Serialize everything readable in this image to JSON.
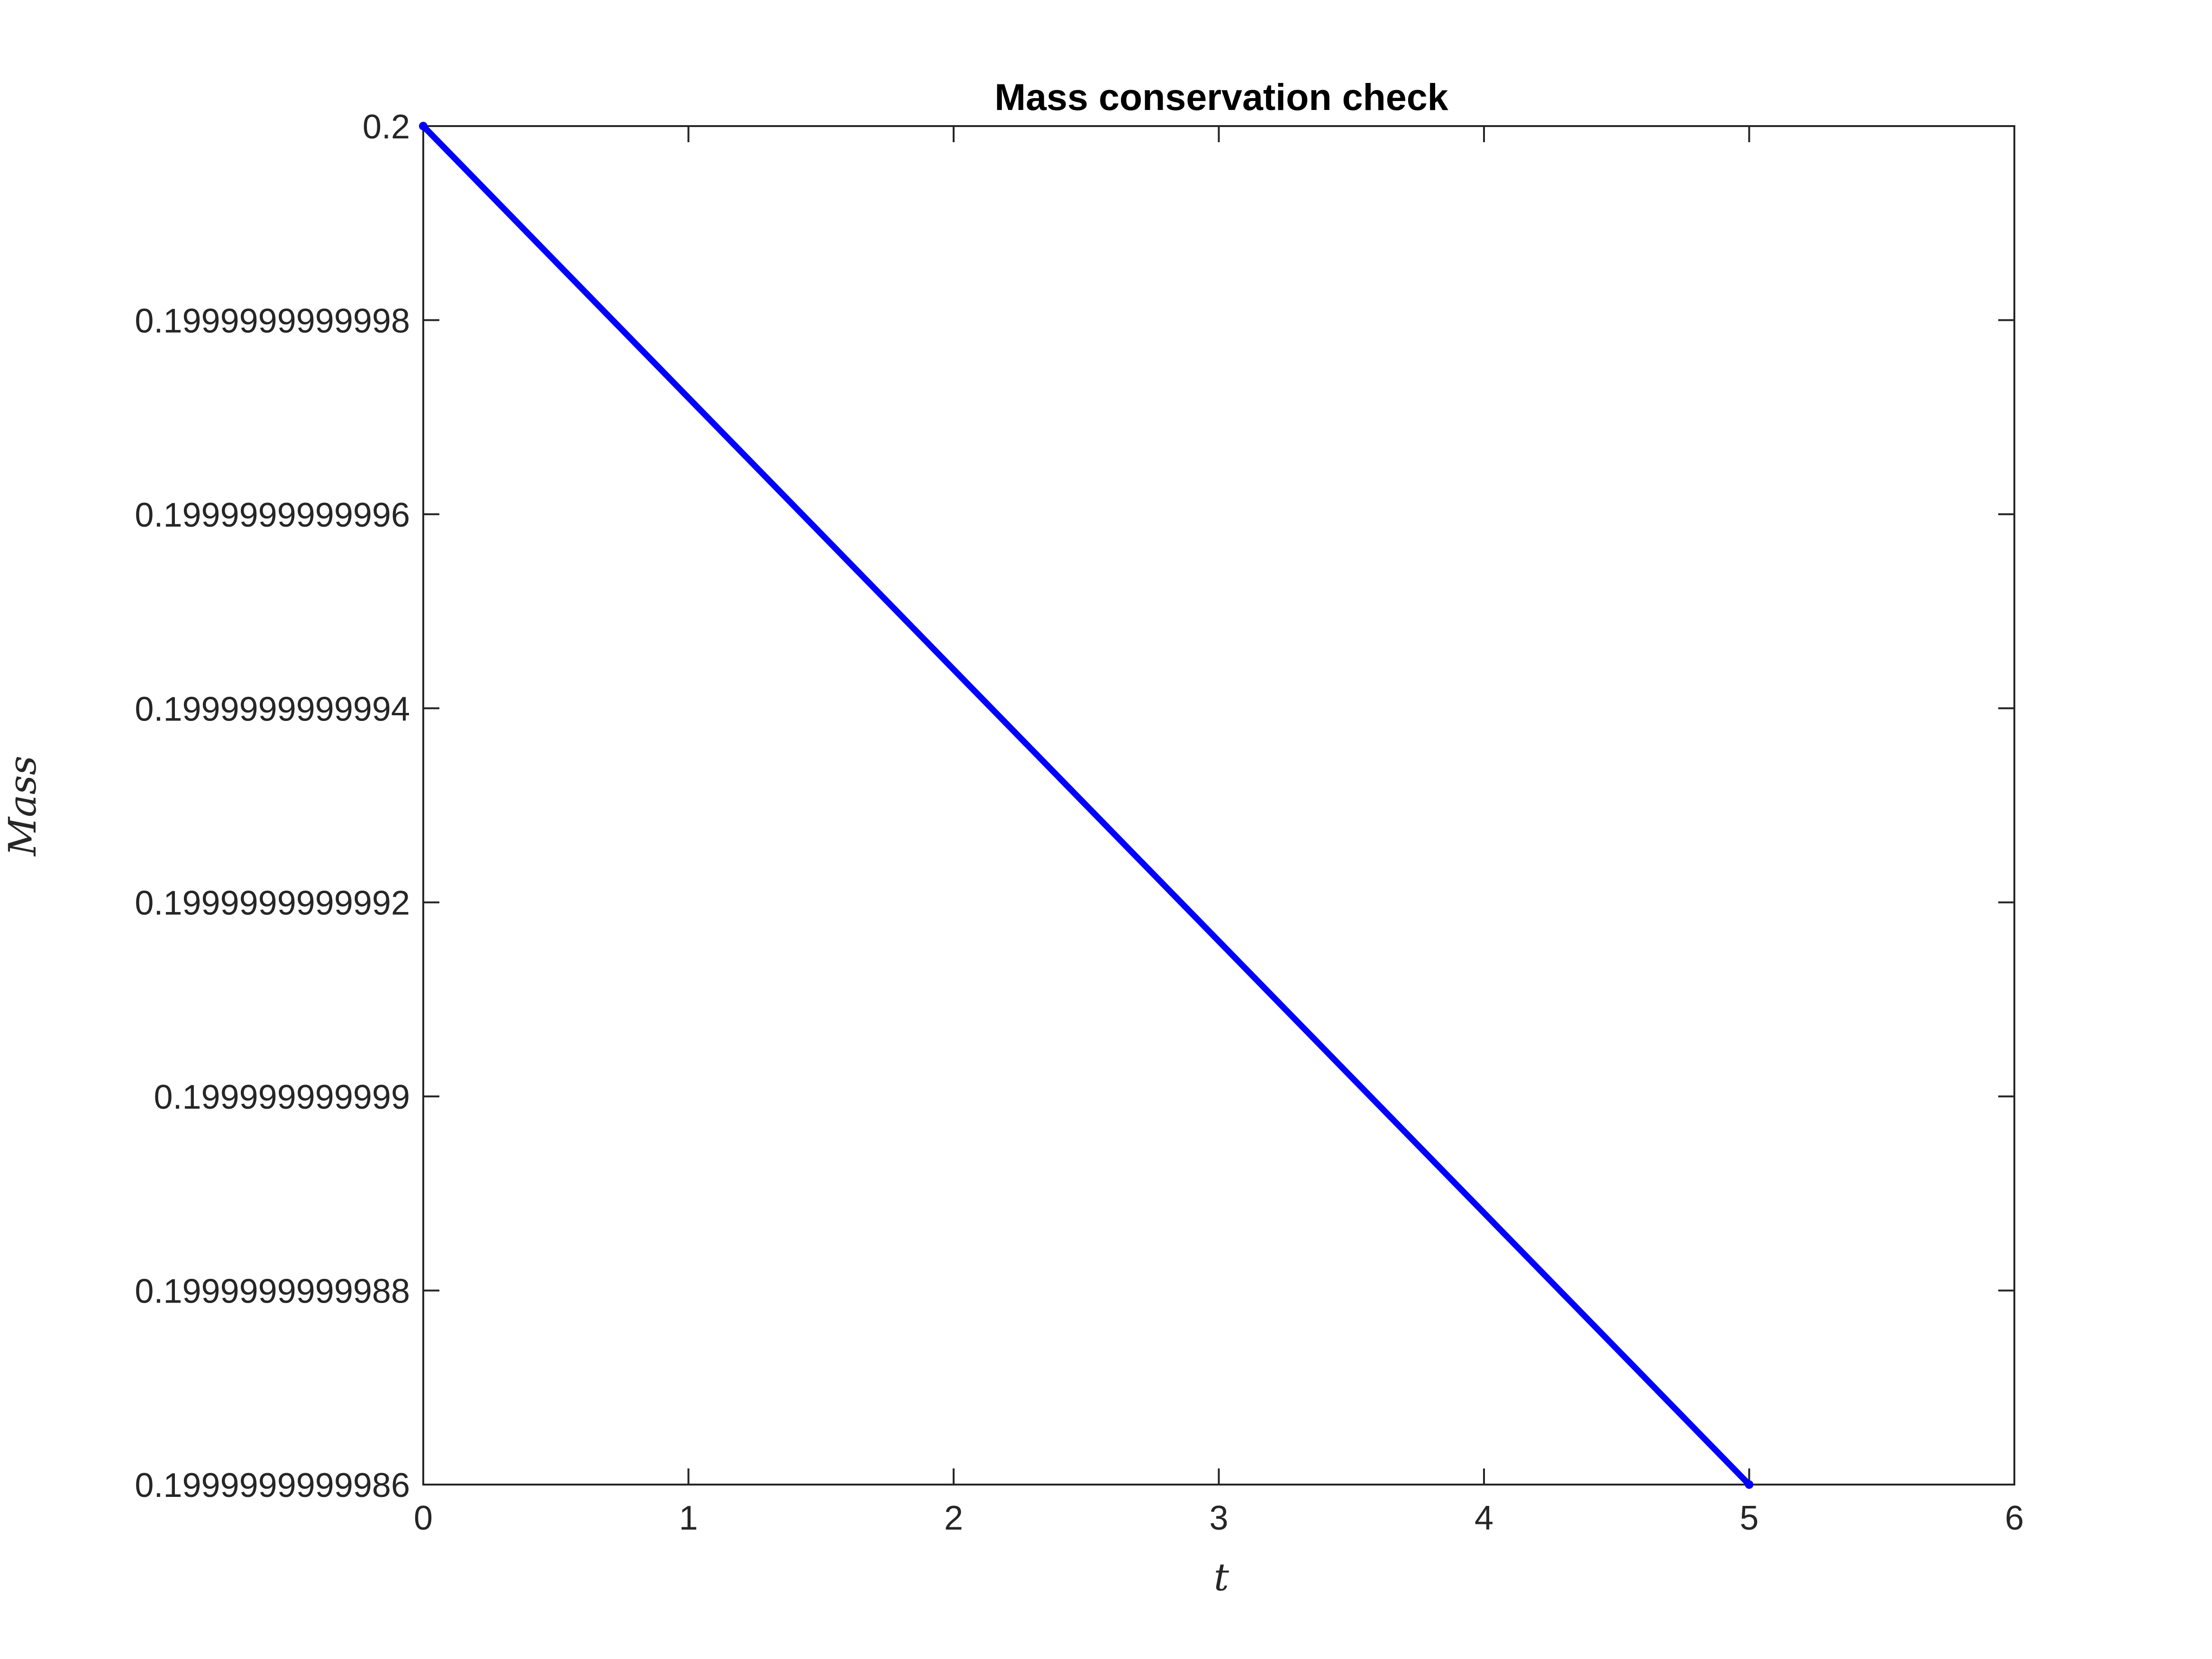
{
  "chart_data": {
    "type": "line",
    "title": "Mass conservation check",
    "xlabel": "t",
    "ylabel": "Mass",
    "xlim": [
      0,
      6
    ],
    "ylim": [
      0.19999999999986,
      0.2
    ],
    "x_ticks": [
      "0",
      "1",
      "2",
      "3",
      "4",
      "5",
      "6"
    ],
    "y_ticks": [
      "0.1999999999998",
      "0.1999999999996",
      "0.1999999999994",
      "0.1999999999992",
      "0.199999999999",
      "0.1999999999988",
      "0.1999999999986"
    ],
    "y_ticks_top": "0.2",
    "grid": false,
    "legend": false,
    "series": [
      {
        "color": "#0000ff",
        "x": [
          0,
          5
        ],
        "y": [
          0.2,
          0.19999999999986
        ]
      }
    ]
  }
}
